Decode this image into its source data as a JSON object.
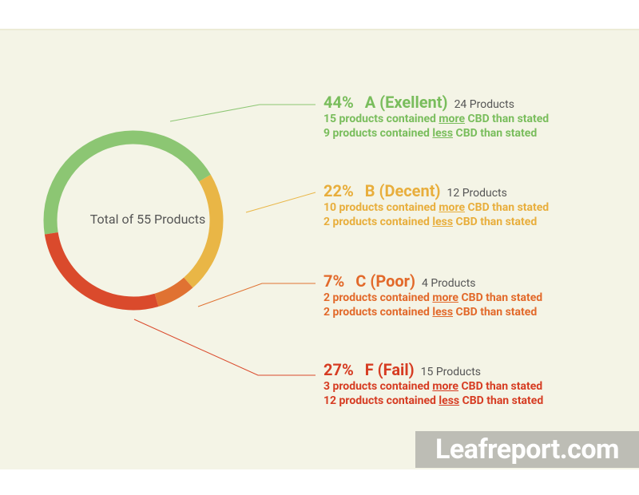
{
  "chart_data": {
    "type": "pie",
    "donut": true,
    "center_label": "Total of 55 Products",
    "categories": [
      "A (Exellent)",
      "B (Decent)",
      "C (Poor)",
      "F (Fail)"
    ],
    "values": [
      44,
      22,
      7,
      27
    ],
    "value_labels": [
      "44%",
      "22%",
      "7%",
      "27%"
    ],
    "colors": [
      "#8cc673",
      "#e9b646",
      "#e07232",
      "#da4a2c"
    ],
    "text_colors": [
      "#79bd5c",
      "#e8ae3c",
      "#e2692a",
      "#d63c22"
    ],
    "product_labels": [
      "24 Products",
      "12 Products",
      "4 Products",
      "15 Products"
    ],
    "details": [
      [
        [
          "15 products contained",
          "more",
          "CBD than stated"
        ],
        [
          "9 products contained",
          "less",
          "CBD than stated"
        ]
      ],
      [
        [
          "10 products contained",
          "more",
          "CBD than stated"
        ],
        [
          "2 products contained",
          "less",
          "CBD than stated"
        ]
      ],
      [
        [
          "2 products contained",
          "more",
          "CBD than stated"
        ],
        [
          "2 products contained",
          "less",
          "CBD than stated"
        ]
      ],
      [
        [
          "3 products contained",
          "more",
          "CBD than stated"
        ],
        [
          "12 products contained",
          "less",
          "CBD than stated"
        ]
      ]
    ]
  },
  "watermark": "Leafreport.com"
}
